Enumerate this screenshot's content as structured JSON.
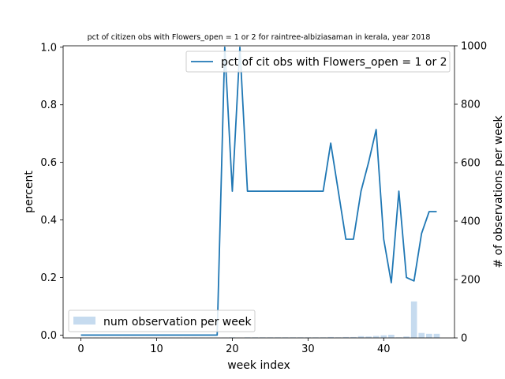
{
  "chart_data": {
    "type": "line",
    "title": "pct of citizen obs with Flowers_open = 1 or 2 for raintree-albiziasaman in kerala, year 2018",
    "xlabel": "week index",
    "ylabel": "percent",
    "y2label": "# of observations per week",
    "xlim": [
      -2.35,
      49.35
    ],
    "ylim": [
      -0.01,
      1.005
    ],
    "y2lim": [
      0,
      1000
    ],
    "xticks": [
      0,
      10,
      20,
      30,
      40
    ],
    "yticks": [
      0.0,
      0.2,
      0.4,
      0.6,
      0.8,
      1.0
    ],
    "y2ticks": [
      0,
      200,
      400,
      600,
      800,
      1000
    ],
    "grid": false,
    "line_series": {
      "name": "pct of cit obs with Flowers_open = 1 or 2",
      "color": "#1f77b4",
      "legend_position": "upper right",
      "x": [
        0,
        1,
        2,
        3,
        4,
        5,
        6,
        7,
        8,
        9,
        10,
        11,
        12,
        13,
        14,
        15,
        16,
        17,
        18,
        19,
        20,
        21,
        22,
        23,
        24,
        25,
        26,
        27,
        28,
        29,
        30,
        31,
        32,
        33,
        34,
        35,
        36,
        37,
        38,
        39,
        40,
        41,
        42,
        43,
        44,
        45,
        46,
        47
      ],
      "values": [
        0,
        0,
        0,
        0,
        0,
        0,
        0,
        0,
        0,
        0,
        0,
        0,
        0,
        0,
        0,
        0,
        0,
        0,
        0,
        1.0,
        0.5,
        1.0,
        0.5,
        0.5,
        0.5,
        0.5,
        0.5,
        0.5,
        0.5,
        0.5,
        0.5,
        0.5,
        0.5,
        0.667,
        0.5,
        0.333,
        0.333,
        0.5,
        0.6,
        0.714,
        0.333,
        0.182,
        0.5,
        0.2,
        0.188,
        0.353,
        0.429,
        0.429
      ]
    },
    "bar_series": {
      "name": "num observation per week",
      "color": "#c6dbef",
      "legend_position": "lower left",
      "x": [
        0,
        1,
        2,
        3,
        4,
        5,
        6,
        7,
        8,
        9,
        10,
        11,
        12,
        13,
        14,
        15,
        16,
        17,
        18,
        19,
        20,
        21,
        22,
        23,
        24,
        25,
        26,
        27,
        28,
        29,
        30,
        31,
        32,
        33,
        34,
        35,
        36,
        37,
        38,
        39,
        40,
        41,
        42,
        43,
        44,
        45,
        46,
        47
      ],
      "values": [
        1,
        1,
        1,
        1,
        1,
        1,
        1,
        1,
        1,
        1,
        1,
        1,
        1,
        1,
        1,
        1,
        1,
        1,
        1,
        1,
        2,
        1,
        2,
        2,
        2,
        2,
        2,
        2,
        2,
        2,
        2,
        2,
        2,
        3,
        2,
        3,
        3,
        6,
        5,
        7,
        9,
        11,
        2,
        5,
        125,
        17,
        14,
        14
      ]
    }
  }
}
